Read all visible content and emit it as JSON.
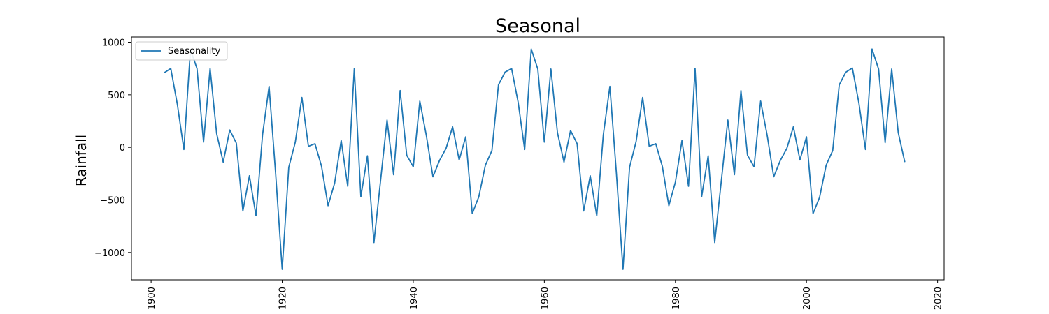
{
  "chart_data": {
    "type": "line",
    "title": "Seasonal",
    "xlabel": "",
    "ylabel": "Rainfall",
    "xlim": [
      1897,
      2021
    ],
    "ylim": [
      -1260,
      1050
    ],
    "x_ticks": [
      1900,
      1920,
      1940,
      1960,
      1980,
      2000,
      2020
    ],
    "x_tick_labels": [
      "1900",
      "1920",
      "1940",
      "1960",
      "1980",
      "2000",
      "2020"
    ],
    "y_ticks": [
      1000,
      500,
      0,
      -500,
      -1000
    ],
    "y_tick_labels": [
      "1000",
      "500",
      "0",
      "−500",
      "−1000"
    ],
    "grid": false,
    "legend_position": "top-left",
    "series": [
      {
        "name": "Seasonality",
        "color": "#1f77b4",
        "x": [
          1902,
          1903,
          1904,
          1905,
          1906,
          1907,
          1908,
          1909,
          1910,
          1911,
          1912,
          1913,
          1914,
          1915,
          1916,
          1917,
          1918,
          1919,
          1920,
          1921,
          1922,
          1923,
          1924,
          1925,
          1926,
          1927,
          1928,
          1929,
          1930,
          1931,
          1932,
          1933,
          1934,
          1935,
          1936,
          1937,
          1938,
          1939,
          1940,
          1941,
          1942,
          1943,
          1944,
          1945,
          1946,
          1947,
          1948,
          1949,
          1950,
          1951,
          1952,
          1953,
          1954,
          1955,
          1956,
          1957,
          1958,
          1959,
          1960,
          1961,
          1962,
          1963,
          1964,
          1965,
          1966,
          1967,
          1968,
          1969,
          1970,
          1971,
          1972,
          1973,
          1974,
          1975,
          1976,
          1977,
          1978,
          1979,
          1980,
          1981,
          1982,
          1983,
          1984,
          1985,
          1986,
          1987,
          1988,
          1989,
          1990,
          1991,
          1992,
          1993,
          1994,
          1995,
          1996,
          1997,
          1998,
          1999,
          2000,
          2001,
          2002,
          2003,
          2004,
          2005,
          2006,
          2007,
          2008,
          2009,
          2010,
          2011,
          2012,
          2013,
          2014,
          2015
        ],
        "values": [
          710,
          750,
          410,
          -20,
          930,
          750,
          50,
          750,
          130,
          -140,
          165,
          40,
          -605,
          -270,
          -650,
          120,
          580,
          -250,
          -1160,
          -190,
          50,
          475,
          10,
          35,
          -180,
          -555,
          -340,
          65,
          -370,
          750,
          -470,
          -80,
          -905,
          -320,
          260,
          -260,
          540,
          -75,
          -185,
          440,
          110,
          -280,
          -125,
          -10,
          195,
          -120,
          100,
          -630,
          -470,
          -170,
          -30,
          595,
          715,
          750,
          430,
          -20,
          935,
          745,
          50,
          745,
          140,
          -140,
          160,
          35,
          -605,
          -270,
          -650,
          120,
          580,
          -250,
          -1160,
          -190,
          55,
          475,
          10,
          35,
          -180,
          -555,
          -330,
          65,
          -370,
          750,
          -470,
          -80,
          -905,
          -320,
          260,
          -260,
          540,
          -75,
          -185,
          440,
          115,
          -280,
          -125,
          -10,
          195,
          -120,
          100,
          -630,
          -475,
          -170,
          -30,
          595,
          715,
          755,
          420,
          -20,
          935,
          745,
          45,
          745,
          140,
          -140
        ]
      }
    ]
  }
}
